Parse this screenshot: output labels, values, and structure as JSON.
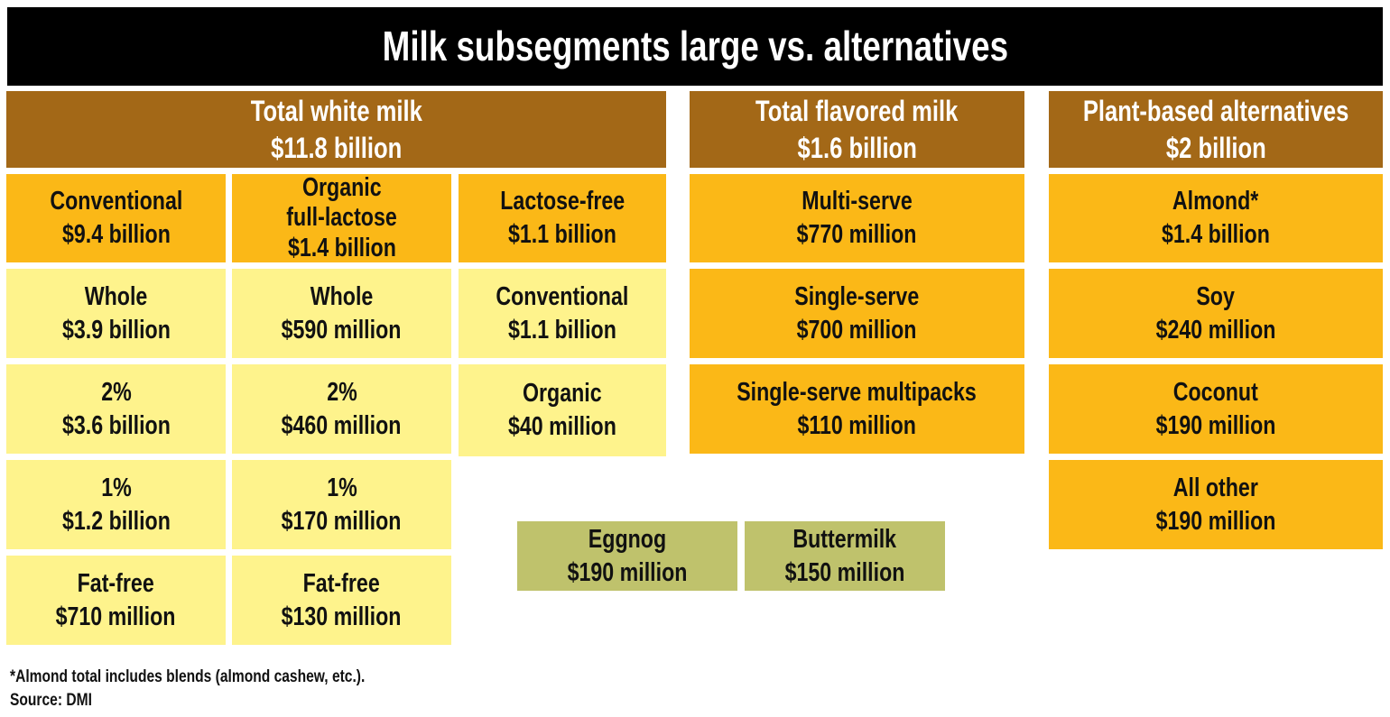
{
  "title": "Milk subsegments large vs. alternatives",
  "colors": {
    "title_bg": "#000000",
    "header": "#a36817",
    "segment": "#fbb817",
    "subsegment": "#fef38c",
    "other": "#bfc26c"
  },
  "white_milk": {
    "header": {
      "label": "Total white milk",
      "value": "$11.8 billion"
    },
    "conventional": {
      "label": "Conventional",
      "value": "$9.4 billion",
      "items": [
        {
          "label": "Whole",
          "value": "$3.9 billion"
        },
        {
          "label": "2%",
          "value": "$3.6 billion"
        },
        {
          "label": "1%",
          "value": "$1.2 billion"
        },
        {
          "label": "Fat-free",
          "value": "$710 million"
        }
      ]
    },
    "organic": {
      "label": "Organic",
      "label2": "full-lactose",
      "value": "$1.4 billion",
      "items": [
        {
          "label": "Whole",
          "value": "$590 million"
        },
        {
          "label": "2%",
          "value": "$460 million"
        },
        {
          "label": "1%",
          "value": "$170 million"
        },
        {
          "label": "Fat-free",
          "value": "$130 million"
        }
      ]
    },
    "lactose_free": {
      "label": "Lactose-free",
      "value": "$1.1 billion",
      "items": [
        {
          "label": "Conventional",
          "value": "$1.1 billion"
        },
        {
          "label": "Organic",
          "value": "$40 million"
        }
      ]
    }
  },
  "flavored_milk": {
    "header": {
      "label": "Total flavored milk",
      "value": "$1.6 billion"
    },
    "items": [
      {
        "label": "Multi-serve",
        "value": "$770 million"
      },
      {
        "label": "Single-serve",
        "value": "$700 million"
      },
      {
        "label": "Single-serve multipacks",
        "value": "$110 million"
      }
    ]
  },
  "plant_based": {
    "header": {
      "label": "Plant-based alternatives",
      "value": "$2 billion"
    },
    "items": [
      {
        "label": "Almond*",
        "value": "$1.4 billion"
      },
      {
        "label": "Soy",
        "value": "$240 million"
      },
      {
        "label": "Coconut",
        "value": "$190 million"
      },
      {
        "label": "All other",
        "value": "$190 million"
      }
    ]
  },
  "other": [
    {
      "label": "Eggnog",
      "value": "$190 million"
    },
    {
      "label": "Buttermilk",
      "value": "$150 million"
    }
  ],
  "footnote": "*Almond total includes blends (almond cashew, etc.).",
  "source": "Source: DMI"
}
